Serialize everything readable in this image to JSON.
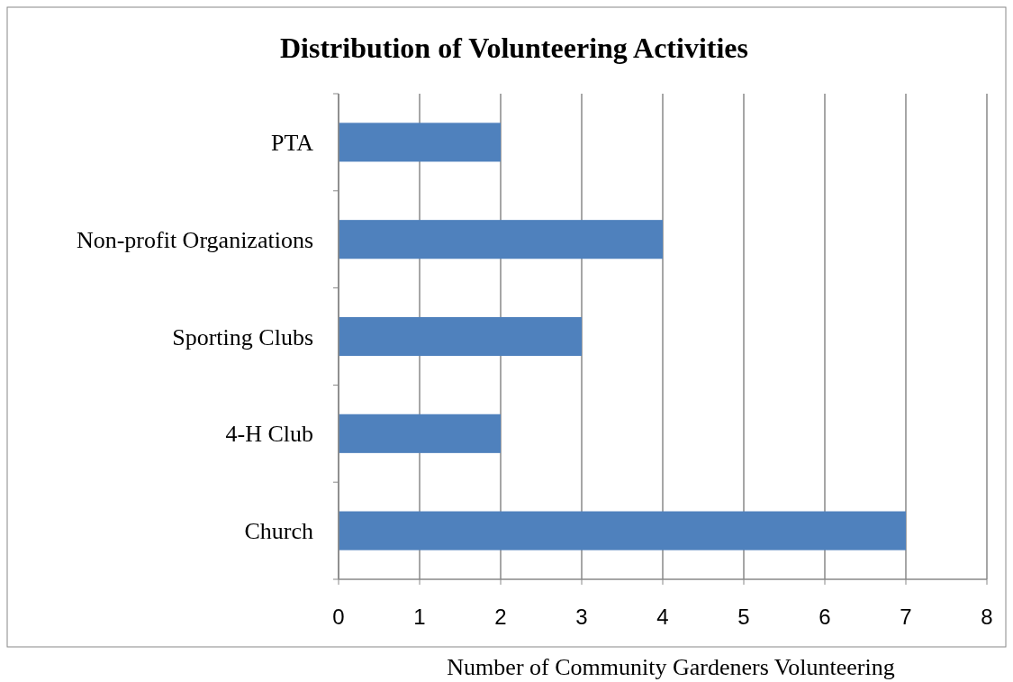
{
  "chart_data": {
    "type": "bar",
    "orientation": "horizontal",
    "title": "Distribution of Volunteering Activities",
    "xlabel": "Number of Community Gardeners Volunteering",
    "categories": [
      "PTA",
      "Non-profit Organizations",
      "Sporting Clubs",
      "4-H Club",
      "Church"
    ],
    "values": [
      2,
      4,
      3,
      2,
      7
    ],
    "color": "#4f81bd",
    "xlim": [
      0,
      8
    ],
    "xticks": [
      0,
      1,
      2,
      3,
      4,
      5,
      6,
      7,
      8
    ],
    "grid": "x"
  }
}
